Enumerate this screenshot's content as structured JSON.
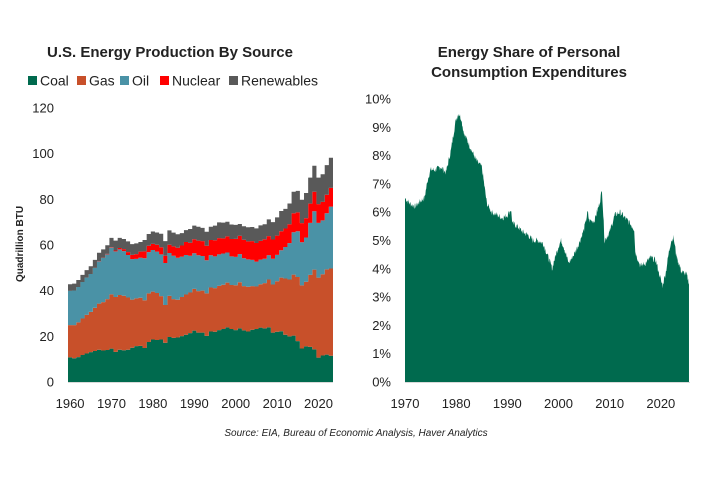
{
  "colors": {
    "coal": "#006a4e",
    "gas": "#c8502a",
    "oil": "#4a92a6",
    "nuclear": "#ff0000",
    "renewables": "#595959",
    "share": "#006a4e"
  },
  "source": "Source: EIA, Bureau of Economic Analysis, Haver Analytics",
  "chart_data": [
    {
      "type": "area",
      "stacked": true,
      "title": "U.S. Energy Production By Source",
      "xlabel": "",
      "ylabel": "Quadrillion BTU",
      "xlim": [
        1959.5,
        2023.5
      ],
      "ylim": [
        0,
        120
      ],
      "x_ticks": [
        1960,
        1970,
        1980,
        1990,
        2000,
        2010,
        2020
      ],
      "y_ticks": [
        0,
        20,
        40,
        60,
        80,
        100,
        120
      ],
      "legend_position": "top",
      "grid": false,
      "x": [
        1960,
        1961,
        1962,
        1963,
        1964,
        1965,
        1966,
        1967,
        1968,
        1969,
        1970,
        1971,
        1972,
        1973,
        1974,
        1975,
        1976,
        1977,
        1978,
        1979,
        1980,
        1981,
        1982,
        1983,
        1984,
        1985,
        1986,
        1987,
        1988,
        1989,
        1990,
        1991,
        1992,
        1993,
        1994,
        1995,
        1996,
        1997,
        1998,
        1999,
        2000,
        2001,
        2002,
        2003,
        2004,
        2005,
        2006,
        2007,
        2008,
        2009,
        2010,
        2011,
        2012,
        2013,
        2014,
        2015,
        2016,
        2017,
        2018,
        2019,
        2020,
        2021,
        2022,
        2023
      ],
      "series": [
        {
          "name": "Coal",
          "color_key": "coal",
          "values": [
            10.8,
            10.4,
            10.9,
            11.8,
            12.5,
            13.1,
            13.6,
            14.1,
            13.8,
            14.0,
            14.6,
            13.2,
            14.1,
            13.9,
            14.1,
            15.0,
            15.7,
            15.8,
            14.9,
            17.5,
            18.6,
            18.4,
            18.6,
            17.2,
            19.7,
            19.3,
            19.5,
            20.1,
            20.7,
            21.4,
            22.5,
            21.6,
            21.6,
            20.2,
            22.1,
            22.0,
            22.7,
            23.2,
            23.9,
            23.2,
            22.7,
            23.5,
            22.6,
            22.1,
            22.9,
            23.2,
            23.8,
            23.5,
            23.9,
            21.6,
            22.0,
            22.2,
            20.7,
            20.0,
            20.3,
            17.9,
            14.7,
            15.6,
            15.4,
            14.3,
            10.7,
            11.6,
            12.0,
            11.5
          ]
        },
        {
          "name": "Gas",
          "color_key": "gas",
          "values": [
            14.1,
            14.5,
            15.2,
            16.0,
            16.9,
            17.6,
            18.9,
            20.2,
            21.2,
            22.3,
            23.8,
            24.0,
            24.0,
            23.9,
            22.9,
            21.1,
            20.9,
            21.1,
            20.9,
            21.3,
            21.0,
            20.6,
            19.0,
            16.5,
            18.0,
            17.0,
            16.5,
            17.1,
            17.6,
            17.8,
            18.3,
            18.2,
            18.4,
            18.6,
            19.3,
            19.1,
            19.4,
            19.4,
            19.6,
            19.3,
            19.7,
            20.2,
            19.4,
            19.6,
            19.1,
            18.6,
            19.0,
            19.8,
            21.0,
            21.1,
            22.1,
            23.5,
            24.6,
            24.9,
            26.7,
            28.1,
            27.6,
            28.3,
            31.5,
            34.9,
            35.0,
            35.6,
            37.3,
            38.2
          ]
        },
        {
          "name": "Oil",
          "color_key": "oil",
          "values": [
            15.0,
            15.2,
            15.5,
            16.0,
            16.3,
            16.6,
            17.4,
            18.6,
            19.3,
            19.6,
            20.4,
            20.0,
            20.0,
            19.5,
            18.6,
            17.7,
            17.3,
            17.5,
            18.4,
            18.1,
            18.2,
            18.1,
            18.3,
            18.4,
            18.8,
            19.0,
            18.4,
            17.7,
            17.3,
            16.1,
            15.6,
            15.7,
            15.2,
            14.5,
            14.1,
            13.9,
            13.8,
            13.7,
            13.2,
            12.5,
            12.4,
            12.3,
            12.2,
            12.0,
            11.5,
            10.9,
            10.8,
            10.7,
            10.6,
            11.3,
            11.6,
            12.0,
            13.8,
            15.9,
            18.6,
            20.0,
            18.9,
            19.4,
            22.8,
            25.6,
            24.0,
            23.6,
            24.6,
            27.1
          ]
        },
        {
          "name": "Nuclear",
          "color_key": "nuclear",
          "values": [
            0.0,
            0.0,
            0.0,
            0.0,
            0.0,
            0.0,
            0.1,
            0.1,
            0.1,
            0.2,
            0.2,
            0.4,
            0.6,
            0.9,
            1.3,
            1.9,
            2.1,
            2.7,
            3.0,
            2.8,
            2.7,
            3.0,
            3.1,
            3.2,
            3.6,
            4.1,
            4.4,
            4.9,
            5.7,
            5.7,
            6.1,
            6.4,
            6.5,
            6.4,
            6.7,
            7.1,
            7.1,
            6.6,
            7.1,
            7.6,
            7.9,
            8.0,
            8.1,
            7.9,
            8.2,
            8.2,
            8.2,
            8.5,
            8.4,
            8.4,
            8.4,
            8.3,
            8.1,
            8.3,
            8.3,
            8.3,
            8.4,
            8.4,
            8.4,
            8.5,
            8.2,
            8.1,
            8.1,
            8.2
          ]
        },
        {
          "name": "Renewables",
          "color_key": "renewables",
          "values": [
            2.9,
            3.0,
            3.1,
            3.1,
            3.3,
            3.4,
            3.5,
            3.6,
            3.7,
            3.8,
            4.1,
            4.3,
            4.4,
            4.4,
            4.7,
            4.7,
            4.7,
            4.2,
            5.0,
            5.1,
            5.4,
            5.4,
            5.9,
            6.4,
            6.3,
            6.0,
            5.9,
            5.4,
            5.2,
            6.0,
            6.0,
            6.1,
            5.8,
            6.1,
            5.8,
            6.4,
            6.9,
            6.9,
            6.4,
            6.4,
            6.1,
            5.2,
            5.9,
            6.2,
            6.2,
            6.4,
            6.8,
            6.6,
            7.3,
            7.6,
            8.0,
            8.9,
            8.6,
            9.1,
            9.4,
            9.4,
            10.2,
            11.1,
            11.4,
            11.4,
            11.6,
            12.1,
            13.0,
            13.2
          ]
        }
      ]
    },
    {
      "type": "area",
      "title": "Energy Share of Personal Consumption Expenditures",
      "title_lines": [
        "Energy Share of Personal",
        "Consumption Expenditures"
      ],
      "xlabel": "",
      "ylabel": "",
      "xlim": [
        1970,
        2025.7
      ],
      "ylim": [
        0,
        10
      ],
      "x_ticks": [
        1970,
        1980,
        1990,
        2000,
        2010,
        2020
      ],
      "y_ticks": [
        "0%",
        "1%",
        "2%",
        "3%",
        "4%",
        "5%",
        "6%",
        "7%",
        "8%",
        "9%",
        "10%"
      ],
      "grid": false,
      "x": [
        1970.0,
        1971.0,
        1972.0,
        1973.0,
        1973.8,
        1974.5,
        1975.0,
        1976.0,
        1977.0,
        1978.0,
        1979.0,
        1979.5,
        1980.0,
        1980.5,
        1981.0,
        1981.5,
        1982.0,
        1983.0,
        1984.0,
        1985.0,
        1986.0,
        1987.0,
        1988.0,
        1989.0,
        1990.0,
        1990.7,
        1991.0,
        1992.0,
        1993.0,
        1994.0,
        1995.0,
        1996.0,
        1997.0,
        1998.0,
        1998.8,
        1999.0,
        2000.0,
        2000.5,
        2001.0,
        2001.8,
        2002.0,
        2003.0,
        2004.0,
        2005.0,
        2005.7,
        2006.0,
        2007.0,
        2008.0,
        2008.5,
        2009.0,
        2010.0,
        2011.0,
        2012.0,
        2013.0,
        2014.0,
        2014.8,
        2015.0,
        2016.0,
        2017.0,
        2018.0,
        2019.0,
        2020.0,
        2020.3,
        2021.0,
        2021.5,
        2022.0,
        2022.5,
        2023.0,
        2024.0,
        2025.0,
        2025.5
      ],
      "values": [
        6.5,
        6.3,
        6.2,
        6.4,
        6.5,
        7.2,
        7.5,
        7.5,
        7.6,
        7.4,
        8.2,
        8.8,
        9.3,
        9.5,
        9.3,
        8.8,
        8.6,
        8.2,
        7.8,
        7.6,
        6.3,
        6.0,
        5.9,
        5.8,
        5.9,
        6.1,
        5.6,
        5.5,
        5.3,
        5.2,
        5.0,
        5.0,
        4.9,
        4.4,
        4.0,
        4.2,
        4.8,
        5.0,
        4.8,
        4.3,
        4.2,
        4.5,
        4.9,
        5.4,
        6.0,
        5.7,
        5.7,
        6.3,
        6.8,
        5.0,
        5.3,
        5.9,
        6.0,
        5.8,
        5.6,
        5.4,
        4.6,
        4.1,
        4.2,
        4.4,
        4.3,
        3.6,
        3.4,
        3.9,
        4.5,
        5.0,
        5.1,
        4.5,
        3.9,
        3.8,
        3.5
      ]
    }
  ]
}
